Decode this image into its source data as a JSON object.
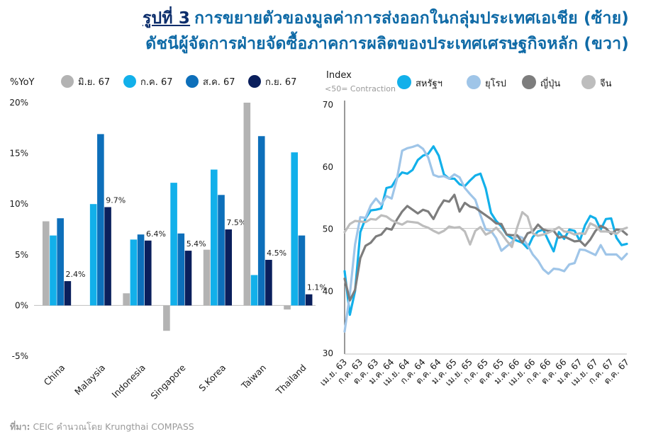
{
  "title": {
    "line1_prefix": "รูปที่ 3",
    "line1_rest": "การขยายตัวของมูลค่าการส่งออกในกลุ่มประเทศเอเชีย (ซ้าย)",
    "line2": "ดัชนีผู้จัดการฝ่ายจัดซื้อภาคการผลิตของประเทศเศรษฐกิจหลัก (ขวา)"
  },
  "source": {
    "label": "ที่มา:",
    "text": "CEIC คำนวณโดย Krungthai COMPASS"
  },
  "colors": {
    "title": "#0f6aa6",
    "fig_label": "#0b2d6b"
  },
  "chart_data": [
    {
      "type": "bar",
      "ylabel": "%YoY",
      "ylim": [
        -5,
        20
      ],
      "yticks": [
        -5,
        0,
        5,
        10,
        15,
        20
      ],
      "ytick_labels": [
        "-5%",
        "0%",
        "5%",
        "10%",
        "15%",
        "20%"
      ],
      "grid": false,
      "legend_position": "top",
      "categories": [
        "China",
        "Malaysia",
        "Indonesia",
        "Singapore",
        "S.Korea",
        "Taiwan",
        "Thailand"
      ],
      "series": [
        {
          "name": "มิ.ย. 67",
          "color": "#b3b3b3",
          "values": [
            8.3,
            0,
            1.2,
            -2.5,
            5.5,
            20.0,
            -0.4
          ]
        },
        {
          "name": "ก.ค. 67",
          "color": "#12b0ea",
          "values": [
            6.9,
            10.0,
            6.5,
            12.1,
            13.4,
            3.0,
            15.1
          ]
        },
        {
          "name": "ส.ค. 67",
          "color": "#0d6fba",
          "values": [
            8.6,
            16.9,
            7.0,
            7.1,
            10.9,
            16.7,
            6.9
          ]
        },
        {
          "name": "ก.ย. 67",
          "color": "#0a1f5c",
          "values": [
            2.4,
            9.7,
            6.4,
            5.4,
            7.5,
            4.5,
            1.1
          ],
          "data_labels": [
            "2.4%",
            "9.7%",
            "6.4%",
            "5.4%",
            "7.5%",
            "4.5%",
            "1.1%"
          ]
        }
      ]
    },
    {
      "type": "line",
      "ylabel": "Index",
      "ylabel_note": "<50= Contraction",
      "ylim": [
        30,
        70
      ],
      "yticks": [
        30,
        40,
        50,
        60,
        70
      ],
      "reference_line": 50,
      "legend_position": "top",
      "x": [
        "เม.ย. 63",
        "พ.ค. 63",
        "มิ.ย. 63",
        "ก.ค. 63",
        "ส.ค. 63",
        "ก.ย. 63",
        "ต.ค. 63",
        "พ.ย. 63",
        "ธ.ค. 63",
        "ม.ค. 64",
        "ก.พ. 64",
        "มี.ค. 64",
        "เม.ย. 64",
        "พ.ค. 64",
        "มิ.ย. 64",
        "ก.ค. 64",
        "ส.ค. 64",
        "ก.ย. 64",
        "ต.ค. 64",
        "พ.ย. 64",
        "ธ.ค. 64",
        "ม.ค. 65",
        "ก.พ. 65",
        "มี.ค. 65",
        "เม.ย. 65",
        "พ.ค. 65",
        "มิ.ย. 65",
        "ก.ค. 65",
        "ส.ค. 65",
        "ก.ย. 65",
        "ต.ค. 65",
        "พ.ย. 65",
        "ธ.ค. 65",
        "ม.ค. 66",
        "ก.พ. 66",
        "มี.ค. 66",
        "เม.ย. 66",
        "พ.ค. 66",
        "มิ.ย. 66",
        "ก.ค. 66",
        "ส.ค. 66",
        "ก.ย. 66",
        "ต.ค. 66",
        "พ.ย. 66",
        "ธ.ค. 66",
        "ม.ค. 67",
        "ก.พ. 67",
        "มี.ค. 67",
        "เม.ย. 67",
        "พ.ค. 67",
        "มิ.ย. 67",
        "ก.ค. 67",
        "ส.ค. 67",
        "ก.ย. 67",
        "ต.ค. 67"
      ],
      "xtick_labels": [
        "เม.ย. 63",
        "ก.ค. 63",
        "ต.ค. 63",
        "ม.ค. 64",
        "เม.ย. 64",
        "ก.ค. 64",
        "ต.ค. 64",
        "ม.ค. 65",
        "เม.ย. 65",
        "ก.ค. 65",
        "ต.ค. 65",
        "ม.ค. 66",
        "เม.ย. 66",
        "ก.ค. 66",
        "ต.ค. 66",
        "ม.ค. 67",
        "เม.ย. 67",
        "ก.ค. 67",
        "ต.ค. 67"
      ],
      "series": [
        {
          "name": "สหรัฐฯ",
          "color": "#12b0ea",
          "values": [
            43.1,
            36.1,
            39.9,
            49.4,
            51.6,
            52.9,
            53.0,
            53.2,
            56.5,
            56.7,
            58.1,
            59.0,
            58.8,
            59.4,
            61.0,
            61.7,
            62.0,
            63.2,
            61.7,
            58.7,
            58.0,
            58.0,
            57.1,
            56.8,
            57.7,
            58.5,
            58.8,
            56.4,
            52.5,
            51.2,
            50.3,
            49.0,
            48.4,
            48.0,
            47.7,
            46.8,
            48.6,
            49.5,
            49.8,
            48.0,
            46.3,
            49.4,
            48.3,
            49.8,
            49.6,
            48.0,
            50.5,
            52.0,
            51.6,
            49.8,
            51.5,
            51.6,
            48.5,
            47.3,
            47.5
          ]
        },
        {
          "name": "ยุโรป",
          "color": "#9fc5e8",
          "values": [
            33.4,
            39.4,
            47.4,
            51.8,
            51.7,
            53.7,
            54.8,
            53.8,
            55.2,
            54.8,
            57.9,
            62.5,
            62.9,
            63.1,
            63.4,
            62.8,
            61.4,
            58.6,
            58.3,
            58.4,
            58.0,
            58.7,
            58.2,
            56.5,
            55.5,
            54.6,
            52.1,
            49.8,
            49.6,
            48.4,
            46.4,
            47.1,
            47.8,
            48.8,
            48.5,
            47.3,
            45.8,
            44.8,
            43.4,
            42.7,
            43.5,
            43.4,
            43.1,
            44.2,
            44.4,
            46.6,
            46.5,
            46.1,
            45.7,
            47.3,
            45.8,
            45.8,
            45.8,
            45.0,
            45.9
          ]
        },
        {
          "name": "ญี่ปุ่น",
          "color": "#7d7d7d",
          "values": [
            41.9,
            38.4,
            40.1,
            45.2,
            47.2,
            47.7,
            48.7,
            49.0,
            50.0,
            49.8,
            51.4,
            52.7,
            53.6,
            53.0,
            52.4,
            53.0,
            52.7,
            51.5,
            53.2,
            54.5,
            54.3,
            55.4,
            52.7,
            54.1,
            53.5,
            53.3,
            52.7,
            52.1,
            51.5,
            50.8,
            50.7,
            49.0,
            48.9,
            48.9,
            47.7,
            49.2,
            49.5,
            50.6,
            49.8,
            49.6,
            49.6,
            48.5,
            48.7,
            48.3,
            47.9,
            48.0,
            47.2,
            48.2,
            49.6,
            50.4,
            50.0,
            49.1,
            49.8,
            49.7,
            49.0
          ]
        },
        {
          "name": "จีน",
          "color": "#bdbdbd",
          "values": [
            49.4,
            50.7,
            51.2,
            51.1,
            51.0,
            51.5,
            51.4,
            52.1,
            51.9,
            51.3,
            50.9,
            50.6,
            51.1,
            51.0,
            50.9,
            50.4,
            50.1,
            49.6,
            49.2,
            49.6,
            50.3,
            50.1,
            50.2,
            49.5,
            47.4,
            49.6,
            50.2,
            49.0,
            49.4,
            50.1,
            49.2,
            48.0,
            47.0,
            50.1,
            52.6,
            51.9,
            49.2,
            48.8,
            49.0,
            49.3,
            49.7,
            50.2,
            49.5,
            49.4,
            49.0,
            49.2,
            49.1,
            50.8,
            50.4,
            49.5,
            49.5,
            49.4,
            49.1,
            49.8,
            50.1
          ]
        }
      ]
    }
  ]
}
